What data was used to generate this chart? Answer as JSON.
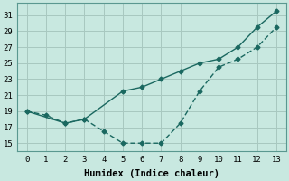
{
  "xlabel": "Humidex (Indice chaleur)",
  "background_color": "#c8e8e0",
  "grid_color": "#a8c8c0",
  "line_color": "#1a6860",
  "xlim": [
    -0.5,
    13.5
  ],
  "ylim": [
    14.0,
    32.5
  ],
  "yticks": [
    15,
    17,
    19,
    21,
    23,
    25,
    27,
    29,
    31
  ],
  "xticks": [
    0,
    1,
    2,
    3,
    4,
    5,
    6,
    7,
    8,
    9,
    10,
    11,
    12,
    13
  ],
  "line1_x": [
    0,
    1,
    2,
    3,
    4,
    5,
    6,
    7,
    8,
    9,
    10,
    11,
    12,
    13
  ],
  "line1_y": [
    19.0,
    18.5,
    17.5,
    18.0,
    16.5,
    15.0,
    15.0,
    15.0,
    17.5,
    21.5,
    24.5,
    25.5,
    27.0,
    29.5
  ],
  "line2_x": [
    0,
    2,
    3,
    5,
    6,
    7,
    8,
    9,
    10,
    11,
    12,
    13
  ],
  "line2_y": [
    19.0,
    17.5,
    18.0,
    21.5,
    22.0,
    23.0,
    24.0,
    25.0,
    25.5,
    27.0,
    29.5,
    31.5
  ],
  "marker": "D",
  "marker_size": 2.5,
  "line_width": 1.0,
  "xlabel_fontsize": 7.5,
  "tick_fontsize": 6.5
}
